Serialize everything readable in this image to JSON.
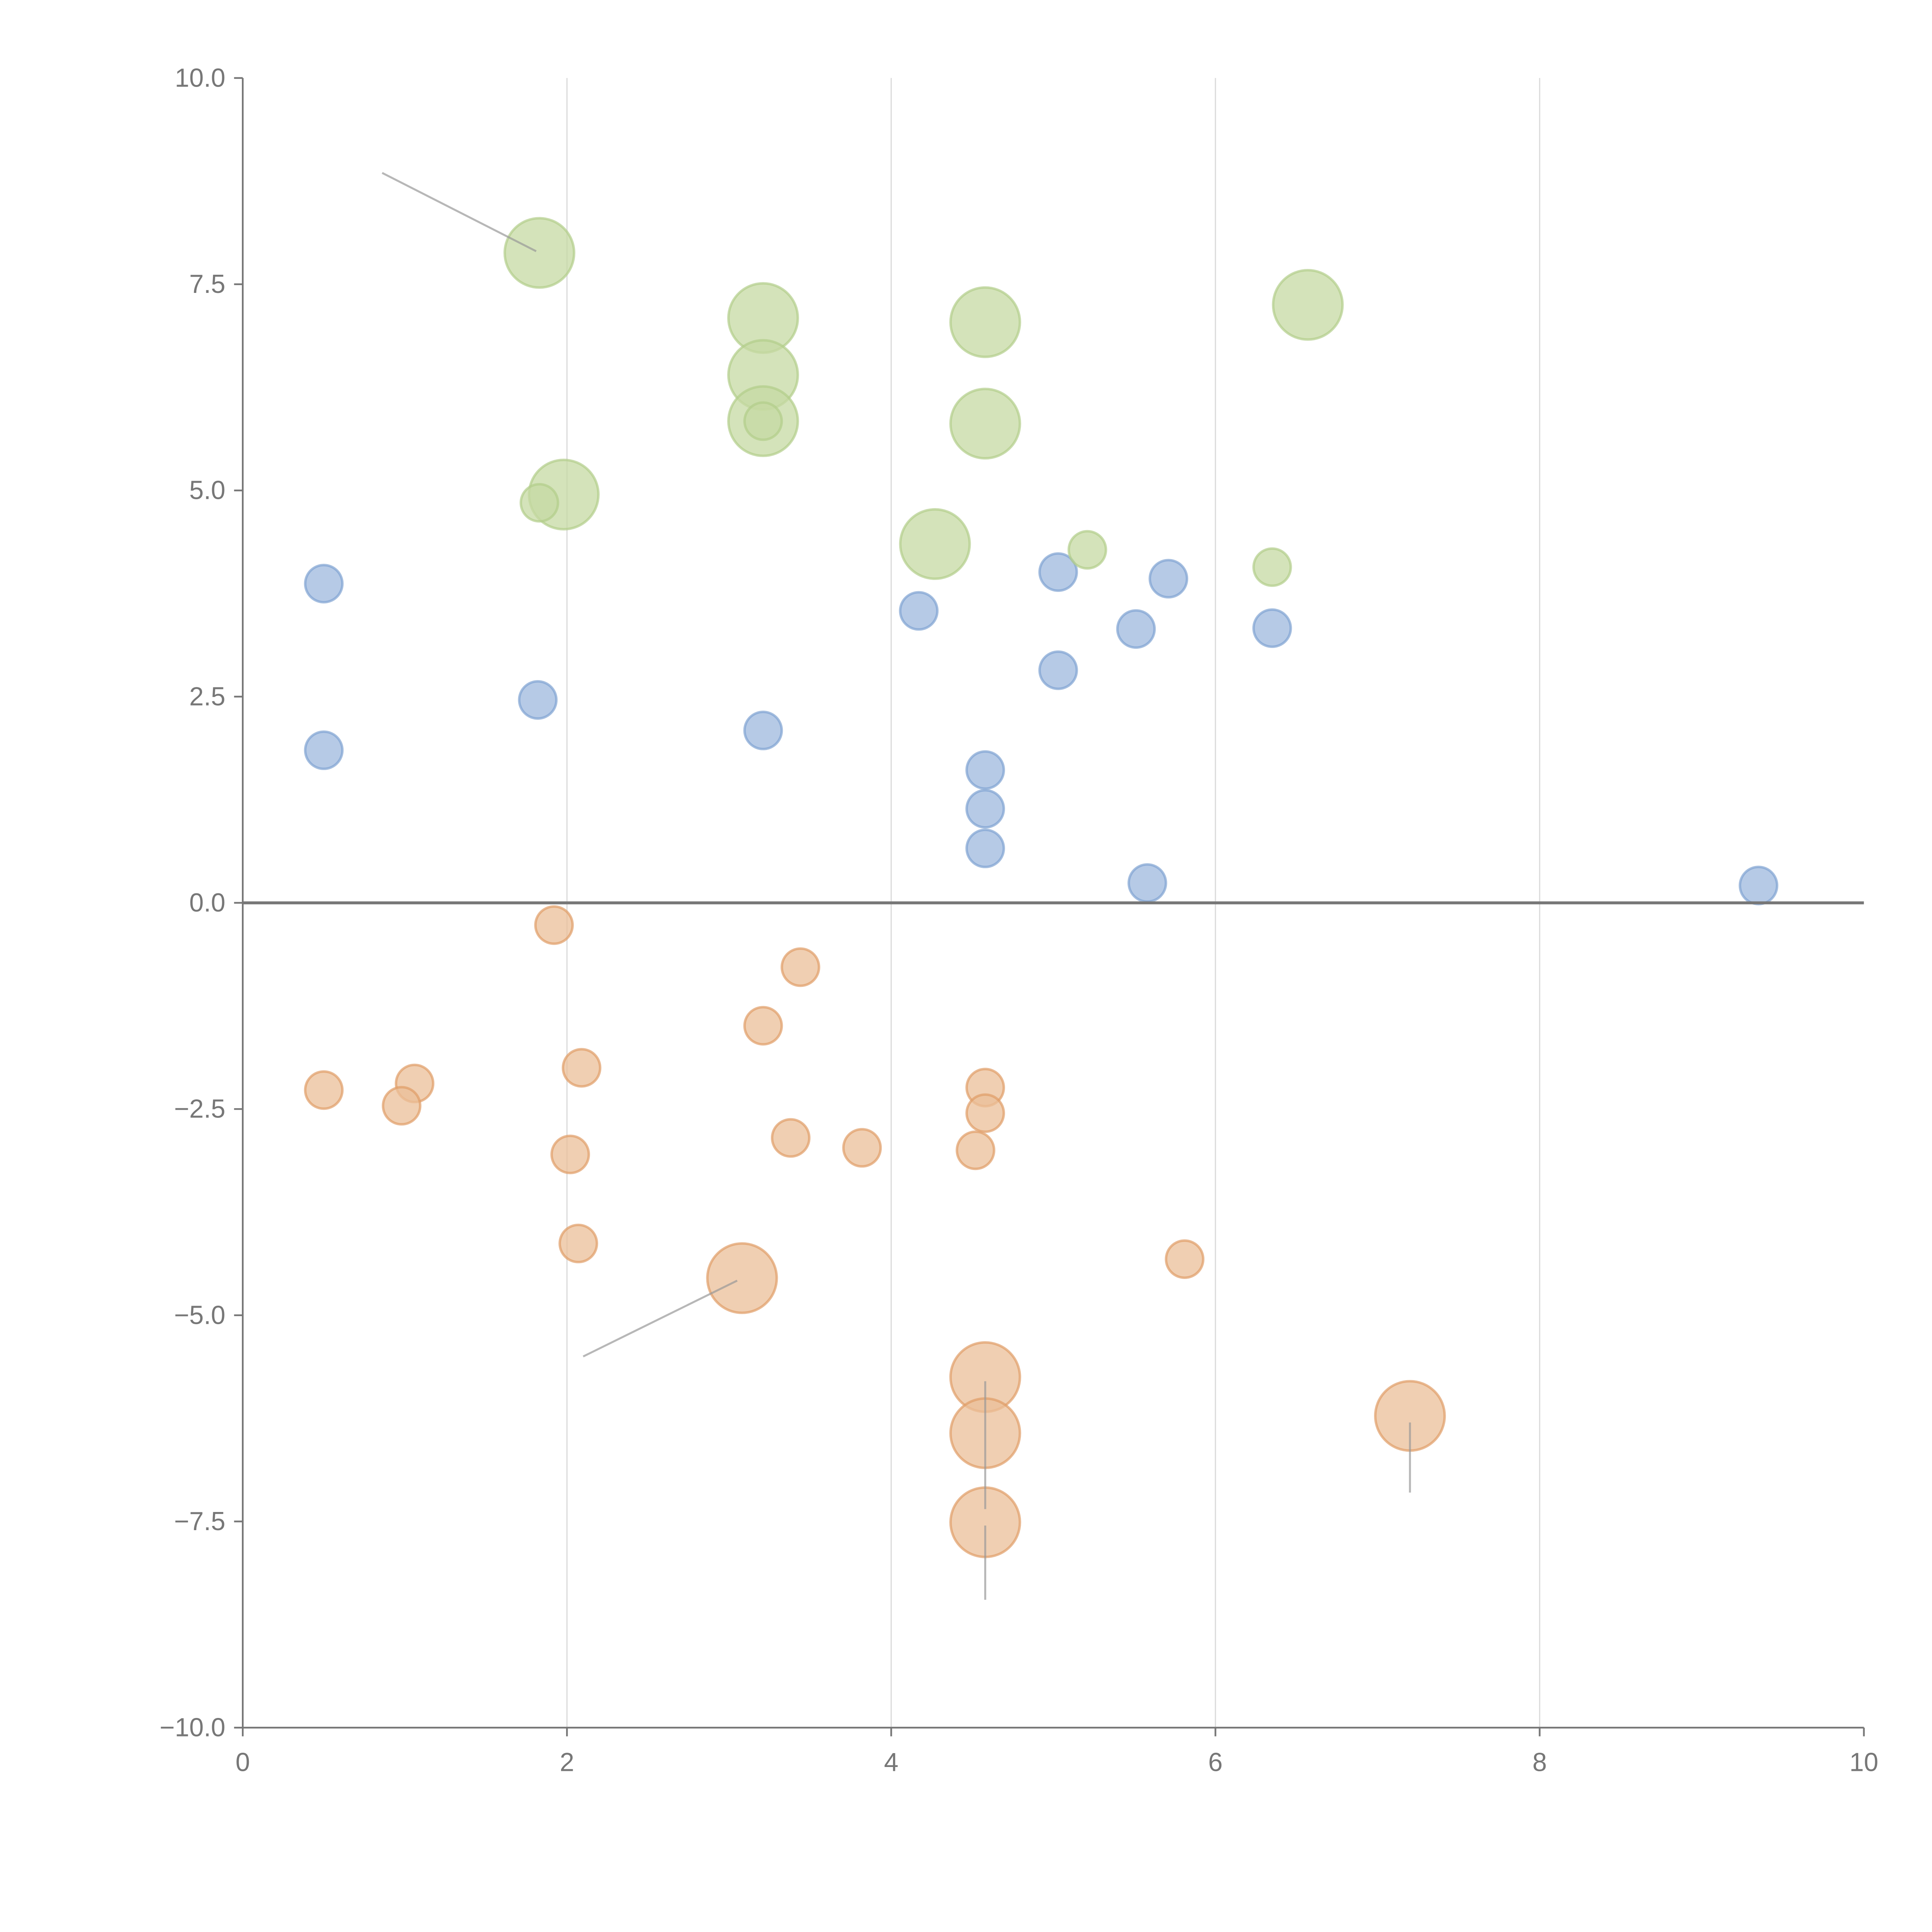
{
  "chart_data": {
    "type": "scatter",
    "title": "",
    "xlabel": "",
    "ylabel": "",
    "xlim": [
      0,
      10
    ],
    "ylim": [
      -10,
      10
    ],
    "x_ticks": [
      0,
      2,
      4,
      6,
      8,
      10
    ],
    "x_tick_labels": [
      "0",
      "2",
      "4",
      "6",
      "8",
      "10"
    ],
    "y_ticks": [
      10,
      7.5,
      5,
      2.5,
      0,
      -2.5,
      -5,
      -7.5,
      -10
    ],
    "y_tick_labels": [
      "10.0",
      "7.5",
      "5.0",
      "2.5",
      "0.0",
      "−2.5",
      "−5.0",
      "−7.5",
      "−10.0"
    ],
    "grid": "vertical",
    "zero_line": true,
    "series": [
      {
        "name": "blue",
        "color": "#9db8dd",
        "stroke": "#7fa3d1",
        "points": [
          {
            "x": 0.5,
            "y": 3.87,
            "size": 1
          },
          {
            "x": 0.5,
            "y": 1.85,
            "size": 1
          },
          {
            "x": 1.82,
            "y": 2.46,
            "size": 1
          },
          {
            "x": 3.21,
            "y": 2.09,
            "size": 1
          },
          {
            "x": 4.17,
            "y": 3.54,
            "size": 1
          },
          {
            "x": 5.03,
            "y": 4.01,
            "size": 1
          },
          {
            "x": 5.03,
            "y": 2.82,
            "size": 1
          },
          {
            "x": 5.51,
            "y": 3.32,
            "size": 1
          },
          {
            "x": 5.71,
            "y": 3.93,
            "size": 1
          },
          {
            "x": 6.35,
            "y": 3.33,
            "size": 1
          },
          {
            "x": 4.58,
            "y": 1.61,
            "size": 1
          },
          {
            "x": 4.58,
            "y": 1.14,
            "size": 1
          },
          {
            "x": 4.58,
            "y": 0.66,
            "size": 1
          },
          {
            "x": 5.58,
            "y": 0.24,
            "size": 1
          },
          {
            "x": 9.35,
            "y": 0.21,
            "size": 1
          }
        ]
      },
      {
        "name": "green",
        "color": "#c5da a3",
        "stroke": "#b2cd8a",
        "points": [
          {
            "x": 1.83,
            "y": 7.88,
            "size": 3.5
          },
          {
            "x": 3.21,
            "y": 7.09,
            "size": 3.5
          },
          {
            "x": 3.21,
            "y": 6.4,
            "size": 3.5
          },
          {
            "x": 3.21,
            "y": 5.84,
            "size": 3.5
          },
          {
            "x": 4.58,
            "y": 7.04,
            "size": 3.5
          },
          {
            "x": 4.58,
            "y": 5.81,
            "size": 3.5
          },
          {
            "x": 1.98,
            "y": 4.95,
            "size": 3.5
          },
          {
            "x": 4.27,
            "y": 4.35,
            "size": 3.5
          },
          {
            "x": 6.57,
            "y": 7.25,
            "size": 3.5
          },
          {
            "x": 1.83,
            "y": 4.85,
            "size": 1
          },
          {
            "x": 3.21,
            "y": 5.84,
            "size": 1
          },
          {
            "x": 5.21,
            "y": 4.28,
            "size": 1
          },
          {
            "x": 6.35,
            "y": 4.07,
            "size": 1
          }
        ]
      },
      {
        "name": "orange",
        "color": "#ebbf98",
        "stroke": "#e09d66",
        "points": [
          {
            "x": 1.92,
            "y": -0.27,
            "size": 1
          },
          {
            "x": 3.44,
            "y": -0.78,
            "size": 1
          },
          {
            "x": 3.21,
            "y": -1.49,
            "size": 1
          },
          {
            "x": 2.09,
            "y": -2.0,
            "size": 1
          },
          {
            "x": 0.5,
            "y": -2.27,
            "size": 1
          },
          {
            "x": 1.06,
            "y": -2.19,
            "size": 1
          },
          {
            "x": 0.98,
            "y": -2.46,
            "size": 1
          },
          {
            "x": 2.02,
            "y": -3.05,
            "size": 1
          },
          {
            "x": 3.38,
            "y": -2.85,
            "size": 1
          },
          {
            "x": 3.82,
            "y": -2.97,
            "size": 1
          },
          {
            "x": 4.58,
            "y": -2.24,
            "size": 1
          },
          {
            "x": 4.58,
            "y": -2.55,
            "size": 1
          },
          {
            "x": 4.52,
            "y": -3.0,
            "size": 1
          },
          {
            "x": 2.07,
            "y": -4.13,
            "size": 1
          },
          {
            "x": 5.81,
            "y": -4.32,
            "size": 1
          },
          {
            "x": 3.08,
            "y": -4.55,
            "size": 3.5
          },
          {
            "x": 4.58,
            "y": -5.75,
            "size": 3.5
          },
          {
            "x": 4.58,
            "y": -6.43,
            "size": 3.5
          },
          {
            "x": 4.58,
            "y": -7.51,
            "size": 3.5
          },
          {
            "x": 7.2,
            "y": -6.22,
            "size": 3.5
          }
        ]
      }
    ],
    "leader_lines": [
      {
        "from": [
          0.86,
          8.85
        ],
        "to": [
          1.81,
          7.9
        ]
      },
      {
        "from": [
          2.1,
          -5.5
        ],
        "to": [
          3.05,
          -4.58
        ]
      },
      {
        "from": [
          4.58,
          -5.8
        ],
        "to": [
          4.58,
          -7.35
        ]
      },
      {
        "from": [
          7.2,
          -6.3
        ],
        "to": [
          7.2,
          -7.15
        ]
      },
      {
        "from": [
          4.58,
          -7.55
        ],
        "to": [
          4.58,
          -8.45
        ]
      }
    ]
  }
}
